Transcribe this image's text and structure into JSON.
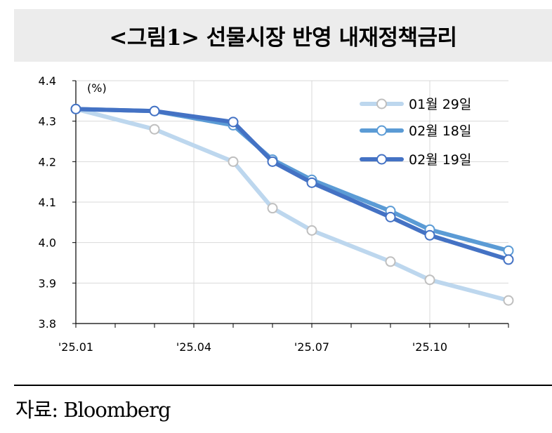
{
  "title": "<그림1> 선물시장 반영 내재정책금리",
  "source": "자료: Bloomberg",
  "chart_data": {
    "type": "line",
    "title": "<그림1> 선물시장 반영 내재정책금리",
    "ylabel": "(%)",
    "xlabel": "",
    "ylim": [
      3.8,
      4.4
    ],
    "yticks": [
      "4.4",
      "4.3",
      "4.2",
      "4.1",
      "4.0",
      "3.9",
      "3.8"
    ],
    "xticks": [
      "'25.01",
      "'25.04",
      "'25.07",
      "'25.10"
    ],
    "x": [
      0,
      1,
      2,
      3,
      4,
      5,
      6,
      7
    ],
    "x_months": [
      "2025-01",
      "2025-03",
      "2025-05",
      "2025-06",
      "2025-07",
      "2025-09",
      "2025-10",
      "2025-12"
    ],
    "grid": true,
    "legend_position": "top-right",
    "series": [
      {
        "name": "01월 29일",
        "color": "#bdd7ee",
        "values": [
          4.33,
          4.28,
          4.2,
          4.085,
          4.03,
          3.953,
          3.908,
          3.857
        ]
      },
      {
        "name": "02월 18일",
        "color": "#5b9bd5",
        "values": [
          4.33,
          4.325,
          4.29,
          4.205,
          4.155,
          4.078,
          4.032,
          3.98
        ]
      },
      {
        "name": "02월 19일",
        "color": "#4472c4",
        "values": [
          4.33,
          4.325,
          4.298,
          4.2,
          4.148,
          4.063,
          4.018,
          3.958
        ]
      }
    ]
  }
}
